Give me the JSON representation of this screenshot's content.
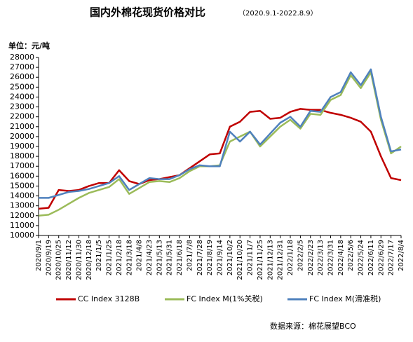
{
  "chart_data": {
    "type": "line",
    "title": "国内外棉花现货价格对比",
    "subtitle": "（2020.9.1-2022.8.9）",
    "y_label": "单位：元/吨",
    "source": "数据来源：棉花展望BCO",
    "categories": [
      "2020/9/1",
      "2020/9/19",
      "2020/10/25",
      "2020/11/12",
      "2020/11/30",
      "2020/12/18",
      "2021/1/5",
      "2021/1/25",
      "2021/2/18",
      "2021/3/18",
      "2021/4/8",
      "2021/4/23",
      "2021/5/13",
      "2021/5/31",
      "2021/6/18",
      "2021/7/8",
      "2021/7/28",
      "2021/8/19",
      "2021/9/14",
      "2021/10/2",
      "2021/10/20",
      "2021/11/7",
      "2021/11/25",
      "2021/12/13",
      "2021/12/31",
      "2022/1/18",
      "2022/2/5",
      "2022/2/23",
      "2022/3/13",
      "2022/3/31",
      "2022/4/18",
      "2022/5/6",
      "2022/5/24",
      "2022/6/11",
      "2022/6/29",
      "2022/7/17",
      "2022/8/4"
    ],
    "series": [
      {
        "name": "CC Index 3128B",
        "color": "#c00000",
        "values": [
          12700,
          12800,
          14600,
          14500,
          14600,
          15000,
          15300,
          15300,
          16600,
          15500,
          15200,
          15600,
          15700,
          15900,
          16100,
          16800,
          17500,
          18200,
          18300,
          21000,
          21500,
          22500,
          22600,
          21800,
          21900,
          22500,
          22800,
          22700,
          22700,
          22400,
          22200,
          21900,
          21500,
          20500,
          18000,
          15800,
          15600
        ]
      },
      {
        "name": "FC Index M(1%关税)",
        "color": "#9bbb59",
        "values": [
          12000,
          12100,
          12600,
          13200,
          13800,
          14300,
          14600,
          14900,
          15700,
          14200,
          14800,
          15400,
          15500,
          15400,
          15800,
          16500,
          17000,
          17000,
          17100,
          19500,
          20000,
          20500,
          19000,
          20000,
          21000,
          21700,
          20800,
          22300,
          22200,
          23700,
          24200,
          26200,
          24900,
          26500,
          21700,
          18300,
          19000
        ]
      },
      {
        "name": "FC Index M(滑准税)",
        "color": "#4f81bd",
        "values": [
          13800,
          13800,
          14100,
          14400,
          14500,
          14700,
          15000,
          15300,
          16000,
          14600,
          15200,
          15800,
          15700,
          15700,
          16100,
          16700,
          17100,
          17000,
          17000,
          20500,
          19500,
          20500,
          19200,
          20300,
          21400,
          22000,
          21000,
          22600,
          22500,
          24000,
          24500,
          26500,
          25200,
          26800,
          22000,
          18500,
          18700
        ]
      }
    ],
    "ylim": [
      10000,
      28000
    ],
    "yticks": [
      10000,
      11000,
      12000,
      13000,
      14000,
      15000,
      16000,
      17000,
      18000,
      19000,
      20000,
      21000,
      22000,
      23000,
      24000,
      25000,
      26000,
      27000,
      28000
    ]
  }
}
